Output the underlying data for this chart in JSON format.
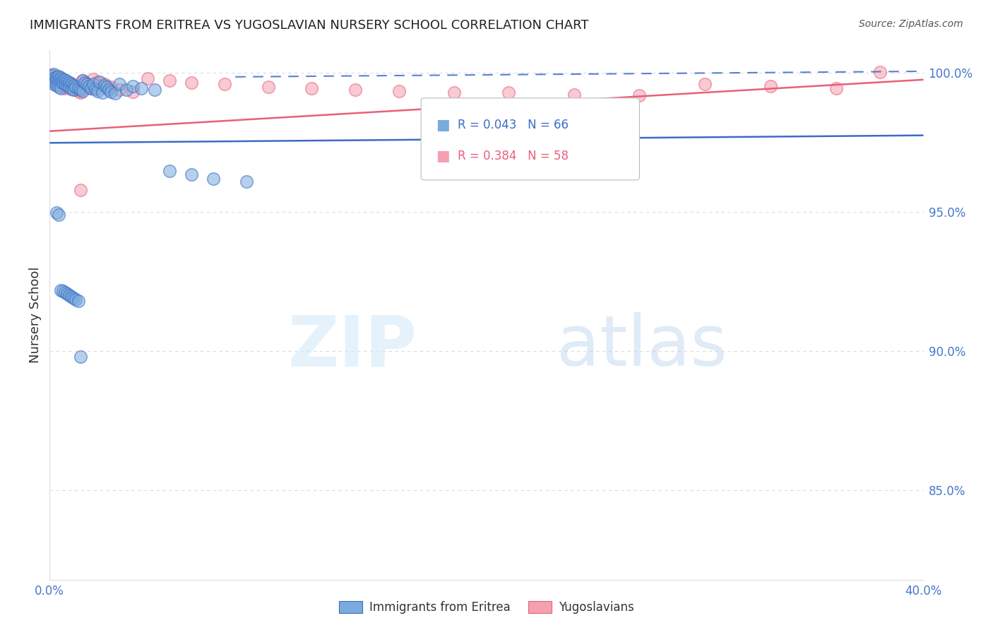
{
  "title": "IMMIGRANTS FROM ERITREA VS YUGOSLAVIAN NURSERY SCHOOL CORRELATION CHART",
  "source": "Source: ZipAtlas.com",
  "ylabel": "Nursery School",
  "xlim": [
    0.0,
    0.4
  ],
  "ylim": [
    0.818,
    1.008
  ],
  "yticks": [
    0.85,
    0.9,
    0.95,
    1.0
  ],
  "ytick_labels": [
    "85.0%",
    "90.0%",
    "95.0%",
    "100.0%"
  ],
  "xticks": [
    0.0,
    0.05,
    0.1,
    0.15,
    0.2,
    0.25,
    0.3,
    0.35,
    0.4
  ],
  "xtick_labels": [
    "0.0%",
    "",
    "",
    "",
    "",
    "",
    "",
    "",
    "40.0%"
  ],
  "blue_color": "#7AABDC",
  "pink_color": "#F4A0B0",
  "blue_line_color": "#3B6CC7",
  "pink_line_color": "#E8607A",
  "axis_color": "#4477CC",
  "grid_color": "#CCCCCC",
  "blue_trend_x0": 0.0,
  "blue_trend_y0": 0.9748,
  "blue_trend_x1": 0.4,
  "blue_trend_y1": 0.9775,
  "pink_trend_x0": 0.0,
  "pink_trend_y0": 0.979,
  "pink_trend_x1": 0.4,
  "pink_trend_y1": 0.9975,
  "dash_line_x0": 0.085,
  "dash_line_y0": 0.9985,
  "dash_line_x1": 0.4,
  "dash_line_y1": 1.0005,
  "blue_scatter_x": [
    0.001,
    0.001,
    0.002,
    0.002,
    0.002,
    0.003,
    0.003,
    0.003,
    0.004,
    0.004,
    0.004,
    0.005,
    0.005,
    0.005,
    0.006,
    0.006,
    0.007,
    0.007,
    0.008,
    0.008,
    0.009,
    0.009,
    0.01,
    0.01,
    0.011,
    0.011,
    0.012,
    0.013,
    0.014,
    0.015,
    0.015,
    0.016,
    0.017,
    0.018,
    0.019,
    0.02,
    0.021,
    0.022,
    0.023,
    0.024,
    0.025,
    0.026,
    0.027,
    0.028,
    0.03,
    0.032,
    0.035,
    0.038,
    0.042,
    0.048,
    0.055,
    0.065,
    0.075,
    0.09,
    0.003,
    0.004,
    0.005,
    0.006,
    0.007,
    0.008,
    0.009,
    0.01,
    0.011,
    0.012,
    0.013,
    0.014
  ],
  "blue_scatter_y": [
    0.999,
    0.997,
    0.9995,
    0.998,
    0.996,
    0.9985,
    0.9975,
    0.9955,
    0.9988,
    0.9972,
    0.995,
    0.9982,
    0.9968,
    0.9945,
    0.9978,
    0.9965,
    0.9975,
    0.996,
    0.997,
    0.9955,
    0.9965,
    0.9948,
    0.996,
    0.9942,
    0.9955,
    0.9938,
    0.995,
    0.9945,
    0.994,
    0.9972,
    0.9935,
    0.9965,
    0.9958,
    0.9952,
    0.9945,
    0.996,
    0.9942,
    0.9935,
    0.9968,
    0.993,
    0.9955,
    0.9948,
    0.994,
    0.9932,
    0.9925,
    0.996,
    0.9938,
    0.9952,
    0.9945,
    0.994,
    0.9648,
    0.9635,
    0.962,
    0.961,
    0.9498,
    0.949,
    0.922,
    0.9215,
    0.921,
    0.9205,
    0.92,
    0.9195,
    0.919,
    0.9185,
    0.918,
    0.898
  ],
  "pink_scatter_x": [
    0.001,
    0.001,
    0.002,
    0.002,
    0.003,
    0.003,
    0.004,
    0.004,
    0.005,
    0.005,
    0.006,
    0.006,
    0.007,
    0.007,
    0.008,
    0.009,
    0.01,
    0.011,
    0.012,
    0.013,
    0.014,
    0.015,
    0.016,
    0.017,
    0.018,
    0.019,
    0.02,
    0.022,
    0.025,
    0.028,
    0.032,
    0.038,
    0.045,
    0.055,
    0.065,
    0.08,
    0.1,
    0.12,
    0.14,
    0.16,
    0.185,
    0.21,
    0.24,
    0.27,
    0.3,
    0.33,
    0.36,
    0.38,
    0.003,
    0.004,
    0.005,
    0.006,
    0.007,
    0.008,
    0.009,
    0.01,
    0.012,
    0.014
  ],
  "pink_scatter_y": [
    0.9992,
    0.9975,
    0.9988,
    0.997,
    0.9985,
    0.9965,
    0.998,
    0.996,
    0.9975,
    0.9955,
    0.997,
    0.995,
    0.9965,
    0.9945,
    0.996,
    0.9955,
    0.995,
    0.9945,
    0.994,
    0.9935,
    0.993,
    0.9972,
    0.9965,
    0.9958,
    0.9952,
    0.9945,
    0.9978,
    0.9968,
    0.9958,
    0.9948,
    0.994,
    0.9932,
    0.998,
    0.9972,
    0.9965,
    0.9958,
    0.995,
    0.9945,
    0.994,
    0.9935,
    0.993,
    0.9928,
    0.9922,
    0.9918,
    0.996,
    0.9952,
    0.9945,
    1.0002,
    0.9988,
    0.9978,
    0.997,
    0.9965,
    0.9958,
    0.9952,
    0.9948,
    0.9962,
    0.9952,
    0.958
  ]
}
